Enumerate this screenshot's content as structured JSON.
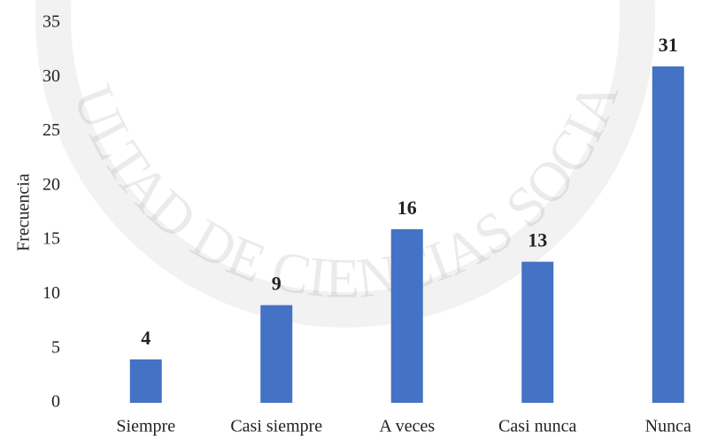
{
  "chart_data": {
    "type": "bar",
    "y_label": "Frecuencia",
    "watermark": "FACULTAD DE CIENCIAS SOCIALES",
    "categories": [
      "Siempre",
      "Casi siempre",
      "A veces",
      "Casi nunca",
      "Nunca"
    ],
    "values": [
      4,
      9,
      16,
      13,
      31
    ],
    "color": "#4472c4",
    "ylim": [
      0,
      35
    ],
    "yticks": [
      0,
      5,
      10,
      15,
      20,
      25,
      30,
      35
    ],
    "grid": false
  }
}
